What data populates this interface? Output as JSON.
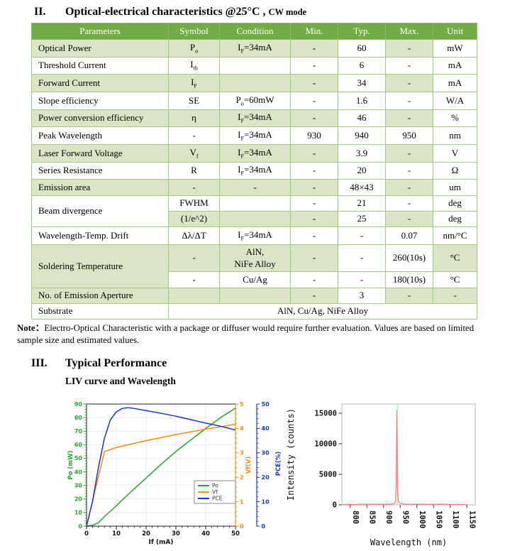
{
  "section2": {
    "number": "II.",
    "title": "Optical-electrical characteristics @25°C ,",
    "mode": "CW mode"
  },
  "table": {
    "header_bg": "#70AD47",
    "band_bg": "#D9E5C4",
    "border_color": "#A6C887",
    "columns": [
      "Parameters",
      "Symbol",
      "Condition",
      "Min.",
      "Typ.",
      "Max.",
      "Unit"
    ],
    "rows": [
      {
        "cells": [
          {
            "t": "Optical Power",
            "bg": "g",
            "a": "l"
          },
          {
            "t": "P",
            "sub": "o",
            "bg": "g"
          },
          {
            "t": "I",
            "sub": "F",
            "t2": "=34mA",
            "bg": "g"
          },
          {
            "t": "-",
            "bg": "g"
          },
          {
            "t": "60",
            "bg": "w"
          },
          {
            "t": "-",
            "bg": "g"
          },
          {
            "t": "mW",
            "bg": "w"
          }
        ]
      },
      {
        "cells": [
          {
            "t": "Threshold Current",
            "bg": "w",
            "a": "l"
          },
          {
            "t": "I",
            "sub": "th",
            "bg": "w"
          },
          {
            "t": "",
            "bg": "w"
          },
          {
            "t": "-",
            "bg": "w"
          },
          {
            "t": "6",
            "bg": "w"
          },
          {
            "t": "-",
            "bg": "w"
          },
          {
            "t": "mA",
            "bg": "w"
          }
        ]
      },
      {
        "cells": [
          {
            "t": "Forward Current",
            "bg": "g",
            "a": "l"
          },
          {
            "t": "I",
            "sub": "F",
            "bg": "g"
          },
          {
            "t": "",
            "bg": "g"
          },
          {
            "t": "-",
            "bg": "g"
          },
          {
            "t": "34",
            "bg": "w"
          },
          {
            "t": "-",
            "bg": "g"
          },
          {
            "t": "mA",
            "bg": "w"
          }
        ]
      },
      {
        "cells": [
          {
            "t": "Slope efficiency",
            "bg": "w",
            "a": "l"
          },
          {
            "t": "SE",
            "bg": "w"
          },
          {
            "t": "P",
            "sub": "o",
            "t2": "=60mW",
            "bg": "w"
          },
          {
            "t": "-",
            "bg": "w"
          },
          {
            "t": "1.6",
            "bg": "w"
          },
          {
            "t": "-",
            "bg": "w"
          },
          {
            "t": "W/A",
            "bg": "w"
          }
        ]
      },
      {
        "cells": [
          {
            "t": "Power conversion efficiency",
            "bg": "g",
            "a": "l"
          },
          {
            "t": "η",
            "bg": "g"
          },
          {
            "t": "I",
            "sub": "F",
            "t2": "=34mA",
            "bg": "g"
          },
          {
            "t": "-",
            "bg": "g"
          },
          {
            "t": "46",
            "bg": "w"
          },
          {
            "t": "-",
            "bg": "g"
          },
          {
            "t": "%",
            "bg": "w"
          }
        ]
      },
      {
        "cells": [
          {
            "t": "Peak Wavelength",
            "bg": "w",
            "a": "l"
          },
          {
            "t": "-",
            "bg": "w"
          },
          {
            "t": "I",
            "sub": "F",
            "t2": "=34mA",
            "bg": "w"
          },
          {
            "t": "930",
            "bg": "w"
          },
          {
            "t": "940",
            "bg": "w"
          },
          {
            "t": "950",
            "bg": "w"
          },
          {
            "t": "nm",
            "bg": "w"
          }
        ]
      },
      {
        "cells": [
          {
            "t": "Laser Forward Voltage",
            "bg": "g",
            "a": "l"
          },
          {
            "t": "V",
            "sub": "f",
            "bg": "g"
          },
          {
            "t": "I",
            "sub": "F",
            "t2": "=34mA",
            "bg": "g"
          },
          {
            "t": "-",
            "bg": "g"
          },
          {
            "t": "3.9",
            "bg": "w"
          },
          {
            "t": "-",
            "bg": "g"
          },
          {
            "t": "V",
            "bg": "w"
          }
        ]
      },
      {
        "cells": [
          {
            "t": "Series Resistance",
            "bg": "w",
            "a": "l"
          },
          {
            "t": "R",
            "bg": "w"
          },
          {
            "t": "I",
            "sub": "F",
            "t2": "=34mA",
            "bg": "w"
          },
          {
            "t": "-",
            "bg": "w"
          },
          {
            "t": "20",
            "bg": "w"
          },
          {
            "t": "-",
            "bg": "w"
          },
          {
            "t": "Ω",
            "bg": "w"
          }
        ]
      },
      {
        "cells": [
          {
            "t": "Emission area",
            "bg": "g",
            "a": "l"
          },
          {
            "t": "-",
            "bg": "g"
          },
          {
            "t": "-",
            "bg": "g"
          },
          {
            "t": "-",
            "bg": "g"
          },
          {
            "t": "48×43",
            "bg": "w"
          },
          {
            "t": "-",
            "bg": "g"
          },
          {
            "t": "um",
            "bg": "w"
          }
        ]
      },
      {
        "cells": [
          {
            "t": "Beam divergence",
            "bg": "w",
            "a": "l",
            "rs": 2
          },
          {
            "t": "FWHM",
            "bg": "w"
          },
          {
            "t": "",
            "bg": "w"
          },
          {
            "t": "-",
            "bg": "w"
          },
          {
            "t": "21",
            "bg": "w"
          },
          {
            "t": "-",
            "bg": "w"
          },
          {
            "t": "deg",
            "bg": "w"
          }
        ]
      },
      {
        "cells": [
          {
            "t": "(1/e^2)",
            "bg": "g"
          },
          {
            "t": "",
            "bg": "g"
          },
          {
            "t": "-",
            "bg": "g"
          },
          {
            "t": "25",
            "bg": "w"
          },
          {
            "t": "-",
            "bg": "g"
          },
          {
            "t": "deg",
            "bg": "w"
          }
        ]
      },
      {
        "cells": [
          {
            "t": "Wavelength-Temp. Drift",
            "bg": "w",
            "a": "l"
          },
          {
            "t": "Δλ/ΔT",
            "bg": "w"
          },
          {
            "t": "I",
            "sub": "F",
            "t2": "=34mA",
            "bg": "w"
          },
          {
            "t": "-",
            "bg": "w"
          },
          {
            "t": "-",
            "bg": "w"
          },
          {
            "t": "0.07",
            "bg": "w"
          },
          {
            "t": "nm/°C",
            "bg": "w"
          }
        ]
      },
      {
        "cells": [
          {
            "t": "Soldering Temperature",
            "bg": "g",
            "a": "l",
            "rs": 2
          },
          {
            "t": "-",
            "bg": "g"
          },
          {
            "t": "AlN,\nNiFe Alloy",
            "bg": "g"
          },
          {
            "t": "-",
            "bg": "g"
          },
          {
            "t": "-",
            "bg": "w"
          },
          {
            "t": "260(10s)",
            "bg": "w"
          },
          {
            "t": "°C",
            "bg": "g"
          }
        ]
      },
      {
        "cells": [
          {
            "t": "-",
            "bg": "w"
          },
          {
            "t": "Cu/Ag",
            "bg": "w"
          },
          {
            "t": "-",
            "bg": "w"
          },
          {
            "t": "-",
            "bg": "w"
          },
          {
            "t": "180(10s)",
            "bg": "w"
          },
          {
            "t": "°C",
            "bg": "w"
          }
        ]
      },
      {
        "cells": [
          {
            "t": "No. of Emission Aperture",
            "bg": "g",
            "a": "l"
          },
          {
            "t": "",
            "bg": "g"
          },
          {
            "t": "",
            "bg": "g"
          },
          {
            "t": "-",
            "bg": "g"
          },
          {
            "t": "3",
            "bg": "w"
          },
          {
            "t": "-",
            "bg": "g"
          },
          {
            "t": "-",
            "bg": "g"
          }
        ]
      },
      {
        "cells": [
          {
            "t": "Substrate",
            "bg": "w",
            "a": "l"
          },
          {
            "t": "AlN, Cu/Ag, NiFe Alloy",
            "bg": "w",
            "cs": 6
          }
        ]
      }
    ]
  },
  "note": {
    "label": "Note：",
    "text": "Electro-Optical Characteristic with a package or diffuser would require further evaluation. Values are based on limited sample size and estimated values."
  },
  "section3": {
    "number": "III.",
    "title": "Typical Performance",
    "subtitle": "LIV curve and Wavelength"
  },
  "chart_data": [
    {
      "type": "line",
      "title": "LIV curve",
      "xlabel": "If (mA)",
      "x_range": [
        0,
        50
      ],
      "x_ticks": [
        0,
        10,
        20,
        30,
        40,
        50
      ],
      "grid": true,
      "legend": {
        "position": "lower right",
        "entries": [
          "Po",
          "Vf",
          "PCE"
        ]
      },
      "axes": {
        "po": {
          "label": "Po (mW)",
          "side": "left",
          "color": "#2E9E39",
          "range": [
            0,
            90
          ],
          "ticks": [
            0,
            10,
            20,
            30,
            40,
            50,
            60,
            70,
            80,
            90
          ]
        },
        "vf": {
          "label": "Vf(V)",
          "side": "right",
          "color": "#EF8E1B",
          "range": [
            0,
            5
          ],
          "ticks": [
            0,
            1,
            2,
            3,
            4,
            5
          ]
        },
        "pce": {
          "label": "PCE(%)",
          "side": "right-offset",
          "color": "#1F35C0",
          "range": [
            0,
            50
          ],
          "ticks": [
            0,
            10,
            20,
            30,
            40,
            50
          ]
        }
      },
      "series": [
        {
          "name": "Po",
          "axis": "po",
          "color": "#2E9E39",
          "points": [
            [
              0,
              0
            ],
            [
              2,
              0.6
            ],
            [
              4,
              2.5
            ],
            [
              6,
              7
            ],
            [
              10,
              15
            ],
            [
              15,
              25.5
            ],
            [
              20,
              35.5
            ],
            [
              25,
              45.5
            ],
            [
              30,
              55
            ],
            [
              35,
              63.5
            ],
            [
              40,
              72
            ],
            [
              45,
              80
            ],
            [
              50,
              87
            ]
          ]
        },
        {
          "name": "Vf",
          "axis": "vf",
          "color": "#EF8E1B",
          "points": [
            [
              0,
              0
            ],
            [
              6,
              3.05
            ],
            [
              10,
              3.22
            ],
            [
              20,
              3.5
            ],
            [
              30,
              3.75
            ],
            [
              40,
              3.97
            ],
            [
              50,
              4.17
            ]
          ]
        },
        {
          "name": "PCE",
          "axis": "pce",
          "color": "#1F35C0",
          "points": [
            [
              0,
              0
            ],
            [
              2,
              10
            ],
            [
              4,
              24
            ],
            [
              6,
              36
            ],
            [
              8,
              43.5
            ],
            [
              10,
              46.8
            ],
            [
              12,
              48.2
            ],
            [
              14,
              48.5
            ],
            [
              16,
              48.2
            ],
            [
              20,
              47.3
            ],
            [
              25,
              46.2
            ],
            [
              30,
              45
            ],
            [
              35,
              43.6
            ],
            [
              40,
              42.2
            ],
            [
              45,
              40.9
            ],
            [
              50,
              39.4
            ]
          ]
        }
      ]
    },
    {
      "type": "line",
      "xlabel": "Wavelength (nm)",
      "ylabel": "Intensity (counts)",
      "x_range": [
        775,
        1175
      ],
      "x_ticks": [
        800,
        850,
        900,
        950,
        1000,
        1050,
        1100,
        1150
      ],
      "x_tick_rotation": 90,
      "y_range": [
        0,
        16500
      ],
      "y_ticks": [
        0,
        5000,
        10000,
        15000
      ],
      "peak_wavelength_nm": 940,
      "peak_intensity_counts": 15500,
      "marker_line": {
        "x": 941,
        "color": "#9FDF9F"
      },
      "frame_color": "#B5B5B5",
      "series": [
        {
          "name": "spectrum",
          "color": "#F08078",
          "points": [
            [
              778,
              60
            ],
            [
              800,
              80
            ],
            [
              815,
              50
            ],
            [
              830,
              90
            ],
            [
              850,
              70
            ],
            [
              870,
              100
            ],
            [
              890,
              80
            ],
            [
              910,
              110
            ],
            [
              925,
              130
            ],
            [
              933,
              250
            ],
            [
              936,
              700
            ],
            [
              938,
              4000
            ],
            [
              939,
              10500
            ],
            [
              940,
              15500
            ],
            [
              941,
              11500
            ],
            [
              942,
              4500
            ],
            [
              943,
              1500
            ],
            [
              945,
              500
            ],
            [
              950,
              250
            ],
            [
              965,
              120
            ],
            [
              1000,
              100
            ],
            [
              1030,
              80
            ],
            [
              1060,
              90
            ],
            [
              1090,
              70
            ],
            [
              1120,
              60
            ],
            [
              1150,
              50
            ]
          ]
        }
      ]
    }
  ]
}
